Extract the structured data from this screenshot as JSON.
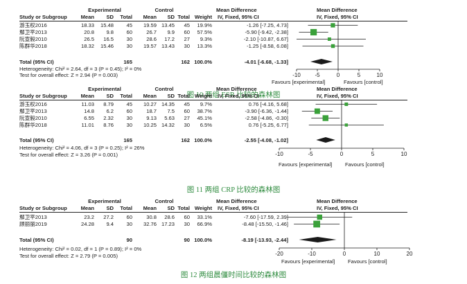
{
  "columns": {
    "study": "Study or Subgroup",
    "group1": "Experimental",
    "group2": "Control",
    "mean": "Mean",
    "sd": "SD",
    "total": "Total",
    "weight": "Weight",
    "md_title": "Mean Difference",
    "md_sub": "IV, Fixed, 95% CI"
  },
  "chart_data": [
    {
      "type": "forest",
      "caption": "图 10 两组 ESR 比较的森林图",
      "studies": [
        {
          "name": "游玉权2016",
          "e_mean": "18.33",
          "e_sd": "15.48",
          "e_n": "45",
          "c_mean": "19.59",
          "c_sd": "13.45",
          "c_n": "45",
          "weight": "19.9%",
          "ci_text": "-1.26 [-7.25, 4.73]",
          "md": -1.26,
          "lo": -7.25,
          "hi": 4.73
        },
        {
          "name": "鄢卫平2013",
          "e_mean": "20.8",
          "e_sd": "9.8",
          "e_n": "60",
          "c_mean": "26.7",
          "c_sd": "9.9",
          "c_n": "60",
          "weight": "57.5%",
          "ci_text": "-5.90 [-9.42, -2.38]",
          "md": -5.9,
          "lo": -9.42,
          "hi": -2.38
        },
        {
          "name": "阮宣毅2010",
          "e_mean": "26.5",
          "e_sd": "16.5",
          "e_n": "30",
          "c_mean": "28.6",
          "c_sd": "17.2",
          "c_n": "27",
          "weight": "9.3%",
          "ci_text": "-2.10 [-10.87, 6.67]",
          "md": -2.1,
          "lo": -10.87,
          "hi": 6.67
        },
        {
          "name": "陈群华2018",
          "e_mean": "18.32",
          "e_sd": "15.46",
          "e_n": "30",
          "c_mean": "19.57",
          "c_sd": "13.43",
          "c_n": "30",
          "weight": "13.3%",
          "ci_text": "-1.25 [-8.58, 6.08]",
          "md": -1.25,
          "lo": -8.58,
          "hi": 6.08
        }
      ],
      "total": {
        "label": "Total (95% CI)",
        "e_n": "165",
        "c_n": "162",
        "weight": "100.0%",
        "ci_text": "-4.01 [-6.68, -1.33]",
        "md": -4.01,
        "lo": -6.68,
        "hi": -1.33
      },
      "heterogeneity": "Heterogeneity: Chi² = 2.64, df = 3 (P = 0.45); I² = 0%",
      "overall_effect": "Test for overall effect: Z = 2.94 (P = 0.003)",
      "xlim": [
        -10,
        10
      ],
      "ticks": [
        "-10",
        "-5",
        "0",
        "5",
        "10"
      ],
      "favours_left": "Favours [experimental]",
      "favours_right": "Favours [control]"
    },
    {
      "type": "forest",
      "caption": "图 11 两组 CRP 比较的森林图",
      "studies": [
        {
          "name": "游玉权2016",
          "e_mean": "11.03",
          "e_sd": "8.79",
          "e_n": "45",
          "c_mean": "10.27",
          "c_sd": "14.35",
          "c_n": "45",
          "weight": "9.7%",
          "ci_text": "0.76 [-4.16, 5.68]",
          "md": 0.76,
          "lo": -4.16,
          "hi": 5.68
        },
        {
          "name": "鄢卫平2013",
          "e_mean": "14.8",
          "e_sd": "6.2",
          "e_n": "60",
          "c_mean": "18.7",
          "c_sd": "7.5",
          "c_n": "60",
          "weight": "38.7%",
          "ci_text": "-3.90 [-6.36, -1.44]",
          "md": -3.9,
          "lo": -6.36,
          "hi": -1.44
        },
        {
          "name": "阮宣毅2010",
          "e_mean": "6.55",
          "e_sd": "2.32",
          "e_n": "30",
          "c_mean": "9.13",
          "c_sd": "5.63",
          "c_n": "27",
          "weight": "45.1%",
          "ci_text": "-2.58 [-4.86, -0.30]",
          "md": -2.58,
          "lo": -4.86,
          "hi": -0.3
        },
        {
          "name": "陈群华2018",
          "e_mean": "11.01",
          "e_sd": "8.76",
          "e_n": "30",
          "c_mean": "10.25",
          "c_sd": "14.32",
          "c_n": "30",
          "weight": "6.5%",
          "ci_text": "0.76 [-5.25, 6.77]",
          "md": 0.76,
          "lo": -5.25,
          "hi": 6.77
        }
      ],
      "total": {
        "label": "Total (95% CI)",
        "e_n": "165",
        "c_n": "162",
        "weight": "100.0%",
        "ci_text": "-2.55 [-4.08, -1.02]",
        "md": -2.55,
        "lo": -4.08,
        "hi": -1.02
      },
      "heterogeneity": "Heterogeneity: Chi² = 4.06, df = 3 (P = 0.25); I² = 26%",
      "overall_effect": "Test for overall effect: Z = 3.26 (P = 0.001)",
      "xlim": [
        -10,
        10
      ],
      "ticks": [
        "-10",
        "-5",
        "0",
        "5",
        "10"
      ],
      "favours_left": "Favours [experimental]",
      "favours_right": "Favours [control]"
    },
    {
      "type": "forest",
      "caption": "图 12 两组晨僵时间比较的森林图",
      "studies": [
        {
          "name": "鄢卫平2013",
          "e_mean": "23.2",
          "e_sd": "27.2",
          "e_n": "60",
          "c_mean": "30.8",
          "c_sd": "28.6",
          "c_n": "60",
          "weight": "33.1%",
          "ci_text": "-7.60 [-17.59, 2.39]",
          "md": -7.6,
          "lo": -17.59,
          "hi": 2.39
        },
        {
          "name": "顾丽丽2019",
          "e_mean": "24.28",
          "e_sd": "9.4",
          "e_n": "30",
          "c_mean": "32.76",
          "c_sd": "17.23",
          "c_n": "30",
          "weight": "66.9%",
          "ci_text": "-8.48 [-15.50, -1.46]",
          "md": -8.48,
          "lo": -15.5,
          "hi": -1.46
        }
      ],
      "total": {
        "label": "Total (95% CI)",
        "e_n": "90",
        "c_n": "90",
        "weight": "100.0%",
        "ci_text": "-8.19 [-13.93, -2.44]",
        "md": -8.19,
        "lo": -13.93,
        "hi": -2.44
      },
      "heterogeneity": "Heterogeneity: Chi² = 0.02, df = 1 (P = 0.89); I² = 0%",
      "overall_effect": "Test for overall effect: Z = 2.79 (P = 0.005)",
      "xlim": [
        -20,
        20
      ],
      "ticks": [
        "-20",
        "-10",
        "0",
        "10",
        "20"
      ],
      "favours_left": "Favours [experimental]",
      "favours_right": "Favours [control]"
    }
  ],
  "colors": {
    "point": "#3aa13a",
    "ink": "#1a1a1a",
    "caption": "#2e8b3e"
  }
}
